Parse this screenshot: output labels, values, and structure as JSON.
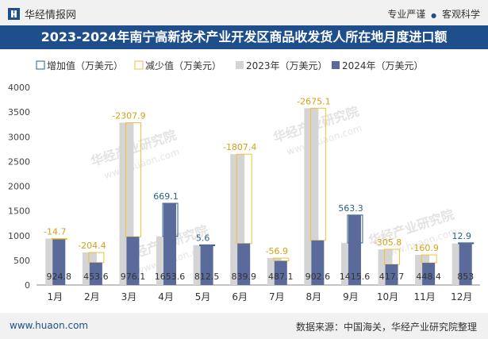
{
  "header": {
    "brand": "华经情报网",
    "slogan_left": "专业严谨",
    "slogan_separator": "●",
    "slogan_right": "客观科学"
  },
  "title": "2023-2024年南宁高新技术产业开发区商品收发货人所在地月度进口额",
  "watermark": [
    "华经产业研究院",
    "www.huaon.com"
  ],
  "footer": {
    "website": "www.huaon.com",
    "source": "数据来源：中国海关，华经产业研究院整理"
  },
  "colors": {
    "bar2023": "#d4d4d4",
    "bar2024": "#5a6a9a",
    "increase": "#2c5f8a",
    "decrease": "#f2c230",
    "brand": "#1f4e8c"
  },
  "chart_data": {
    "type": "bar",
    "title": "2023-2024年南宁高新技术产业开发区商品收发货人所在地月度进口额",
    "categories": [
      "1月",
      "2月",
      "3月",
      "4月",
      "5月",
      "6月",
      "7月",
      "8月",
      "9月",
      "10月",
      "11月",
      "12月"
    ],
    "series": [
      {
        "name": "2023年（万美元）",
        "values": [
          939.5,
          658.0,
          3284.0,
          984.5,
          806.9,
          2647.3,
          544.0,
          3577.7,
          852.3,
          723.5,
          609.3,
          840.1
        ]
      },
      {
        "name": "2024年（万美元）",
        "values": [
          924.8,
          453.6,
          976.1,
          1653.6,
          812.5,
          839.9,
          487.1,
          902.6,
          1415.6,
          417.7,
          448.4,
          853
        ]
      }
    ],
    "change_series": [
      {
        "name": "增加值（万美元）",
        "values": [
          null,
          null,
          null,
          669.1,
          5.6,
          null,
          null,
          null,
          563.3,
          null,
          null,
          12.9
        ]
      },
      {
        "name": "减少值（万美元）",
        "values": [
          -14.7,
          -204.4,
          -2307.9,
          null,
          null,
          -1807.4,
          -56.9,
          -2675.1,
          null,
          -305.8,
          -160.9,
          null
        ]
      }
    ],
    "legend": [
      "增加值（万美元）",
      "减少值（万美元）",
      "2023年（万美元）",
      "2024年（万美元）"
    ],
    "ylim": [
      0,
      4000
    ],
    "yticks": [
      0,
      500,
      1000,
      1500,
      2000,
      2500,
      3000,
      3500,
      4000
    ],
    "xlabel": "",
    "ylabel": ""
  }
}
